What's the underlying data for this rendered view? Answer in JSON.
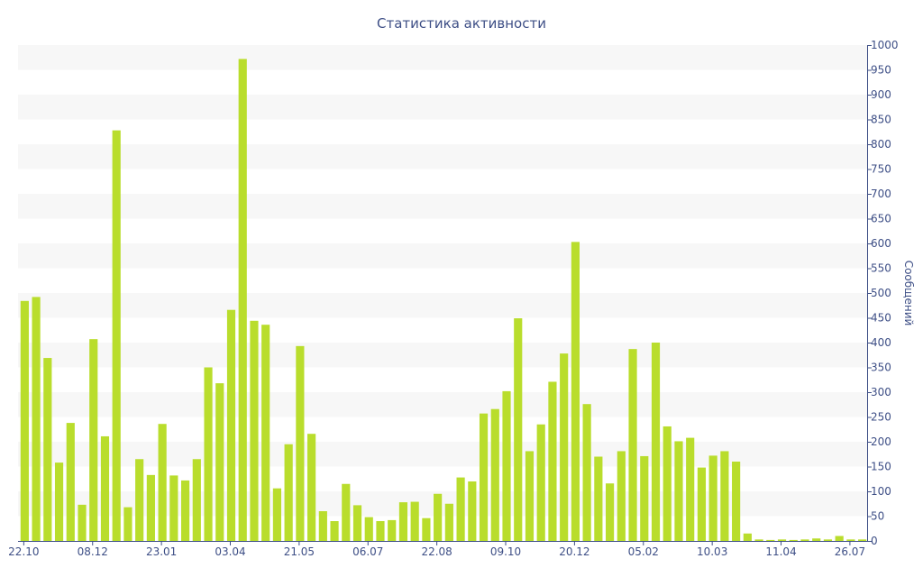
{
  "chart_data": {
    "type": "bar",
    "title": "Статистика активности",
    "ylabel": "Сообщений",
    "xlabel": "",
    "ylim": [
      0,
      1000
    ],
    "yticks": [
      0,
      50,
      100,
      150,
      200,
      250,
      300,
      350,
      400,
      450,
      500,
      550,
      600,
      650,
      700,
      750,
      800,
      850,
      900,
      950,
      1000
    ],
    "y_axis_side": "right",
    "grid": "alternating horizontal bands",
    "x_tick_labels": [
      {
        "index": 0,
        "label": "22.10"
      },
      {
        "index": 6,
        "label": "08.12"
      },
      {
        "index": 12,
        "label": "23.01"
      },
      {
        "index": 18,
        "label": "03.04"
      },
      {
        "index": 24,
        "label": "21.05"
      },
      {
        "index": 30,
        "label": "06.07"
      },
      {
        "index": 36,
        "label": "22.08"
      },
      {
        "index": 42,
        "label": "09.10"
      },
      {
        "index": 48,
        "label": "20.12"
      },
      {
        "index": 54,
        "label": "05.02"
      },
      {
        "index": 60,
        "label": "10.03"
      },
      {
        "index": 66,
        "label": "11.04"
      },
      {
        "index": 72,
        "label": "26.07"
      }
    ],
    "series": [
      {
        "values": [
          484,
          492,
          369,
          158,
          238,
          73,
          407,
          211,
          828,
          68,
          165,
          133,
          236,
          132,
          122,
          165,
          350,
          318,
          466,
          972,
          444,
          436,
          106,
          195,
          393,
          216,
          60,
          40,
          115,
          72,
          48,
          40,
          42,
          78,
          79,
          46,
          95,
          75,
          128,
          120,
          257,
          266,
          302,
          449,
          181,
          235,
          321,
          378,
          603,
          276,
          170,
          116,
          181,
          387,
          171,
          400,
          231,
          201,
          208,
          148,
          172,
          181,
          160,
          15,
          3,
          2,
          3,
          2,
          3,
          5,
          3,
          10,
          3,
          3
        ]
      }
    ],
    "colors": {
      "bar": "#b9dd2c",
      "band": "#f7f7f7",
      "text": "#3e4f86",
      "axis": "#3e4f86"
    }
  }
}
